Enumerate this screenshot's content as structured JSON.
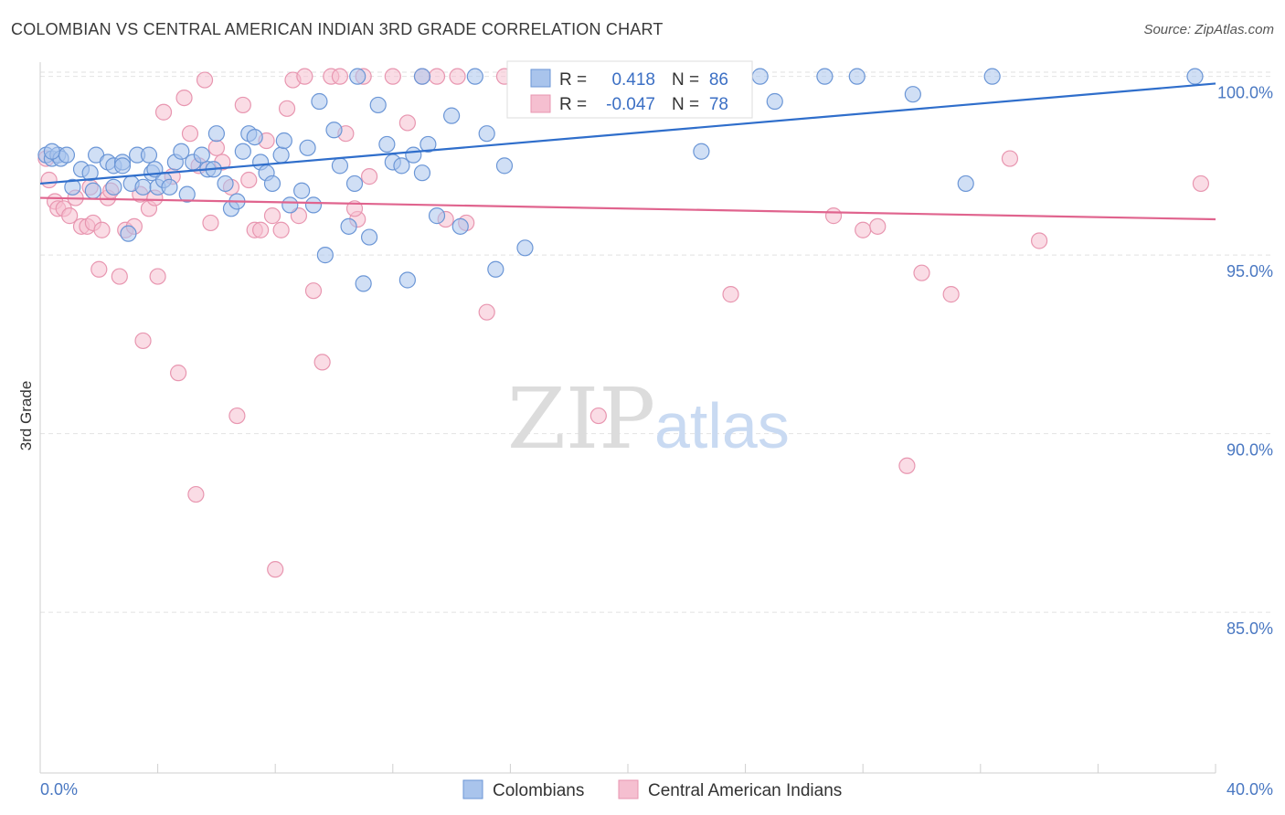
{
  "title": "COLOMBIAN VS CENTRAL AMERICAN INDIAN 3RD GRADE CORRELATION CHART",
  "source": "Source: ZipAtlas.com",
  "watermark": {
    "zip": "ZIP",
    "atlas": "atlas"
  },
  "colors": {
    "blue_fill": "#a9c4ec",
    "blue_stroke": "#6b96d6",
    "blue_line": "#2f6ecb",
    "pink_fill": "#f5bfd0",
    "pink_stroke": "#e896b0",
    "pink_line": "#e0648e",
    "grid": "#e2e2e2",
    "tick_text": "#4a78c2"
  },
  "legend": {
    "rows": [
      {
        "r_label": "R =",
        "r_value": "0.418",
        "n_label": "N =",
        "n_value": "86"
      },
      {
        "r_label": "R =",
        "r_value": "-0.047",
        "n_label": "N =",
        "n_value": "78"
      }
    ]
  },
  "chart_data": {
    "type": "scatter",
    "xlabel": "",
    "ylabel": "3rd Grade",
    "xlim": [
      0,
      40
    ],
    "ylim": [
      80.5,
      100.4
    ],
    "x_tick_labels": [
      "0.0%",
      "40.0%"
    ],
    "y_ticks": [
      85,
      90,
      95,
      100
    ],
    "y_tick_labels": [
      "85.0%",
      "90.0%",
      "95.0%",
      "100.0%"
    ],
    "grid": true,
    "legend_position": "top-center",
    "series": [
      {
        "name": "Colombians",
        "color": "#a9c4ec",
        "trend": {
          "x": [
            0,
            40
          ],
          "y": [
            97.0,
            99.8
          ]
        },
        "points": [
          [
            0.2,
            97.8
          ],
          [
            0.4,
            97.7
          ],
          [
            0.6,
            97.8
          ],
          [
            0.7,
            97.7
          ],
          [
            0.9,
            97.8
          ],
          [
            1.1,
            96.9
          ],
          [
            1.4,
            97.4
          ],
          [
            1.7,
            97.3
          ],
          [
            1.9,
            97.8
          ],
          [
            2.3,
            97.6
          ],
          [
            2.5,
            97.5
          ],
          [
            2.8,
            97.6
          ],
          [
            2.8,
            97.5
          ],
          [
            2.5,
            96.9
          ],
          [
            3.0,
            95.6
          ],
          [
            3.1,
            97.0
          ],
          [
            3.3,
            97.8
          ],
          [
            3.5,
            96.9
          ],
          [
            3.7,
            97.8
          ],
          [
            3.8,
            97.3
          ],
          [
            4.0,
            96.9
          ],
          [
            4.2,
            97.1
          ],
          [
            4.4,
            96.9
          ],
          [
            4.6,
            97.6
          ],
          [
            4.8,
            97.9
          ],
          [
            5.0,
            96.7
          ],
          [
            5.2,
            97.6
          ],
          [
            5.5,
            97.8
          ],
          [
            5.7,
            97.4
          ],
          [
            5.9,
            97.4
          ],
          [
            6.0,
            98.4
          ],
          [
            6.3,
            97.0
          ],
          [
            6.5,
            96.3
          ],
          [
            6.7,
            96.5
          ],
          [
            6.9,
            97.9
          ],
          [
            7.1,
            98.4
          ],
          [
            7.3,
            98.3
          ],
          [
            7.5,
            97.6
          ],
          [
            7.7,
            97.3
          ],
          [
            7.9,
            97.0
          ],
          [
            8.2,
            97.8
          ],
          [
            8.3,
            98.2
          ],
          [
            8.5,
            96.4
          ],
          [
            8.9,
            96.8
          ],
          [
            9.1,
            98.0
          ],
          [
            9.3,
            96.4
          ],
          [
            9.5,
            99.3
          ],
          [
            9.7,
            95.0
          ],
          [
            10.0,
            98.5
          ],
          [
            10.2,
            97.5
          ],
          [
            10.5,
            95.8
          ],
          [
            10.7,
            97.0
          ],
          [
            11.0,
            94.2
          ],
          [
            11.2,
            95.5
          ],
          [
            11.5,
            99.2
          ],
          [
            11.8,
            98.1
          ],
          [
            12.0,
            97.6
          ],
          [
            12.3,
            97.5
          ],
          [
            12.5,
            94.3
          ],
          [
            12.7,
            97.8
          ],
          [
            13.0,
            97.3
          ],
          [
            13.2,
            98.1
          ],
          [
            13.5,
            96.1
          ],
          [
            14.0,
            98.9
          ],
          [
            14.3,
            95.8
          ],
          [
            14.8,
            100.0
          ],
          [
            15.2,
            98.4
          ],
          [
            15.5,
            94.6
          ],
          [
            15.8,
            97.5
          ],
          [
            16.5,
            95.2
          ],
          [
            17.0,
            100.0
          ],
          [
            10.8,
            100.0
          ],
          [
            13.0,
            100.0
          ],
          [
            16.2,
            100.0
          ],
          [
            22.5,
            97.9
          ],
          [
            24.5,
            100.0
          ],
          [
            25.0,
            99.3
          ],
          [
            26.7,
            100.0
          ],
          [
            27.8,
            100.0
          ],
          [
            29.7,
            99.5
          ],
          [
            31.5,
            97.0
          ],
          [
            32.4,
            100.0
          ],
          [
            39.3,
            100.0
          ],
          [
            0.4,
            97.9
          ],
          [
            1.8,
            96.8
          ],
          [
            3.9,
            97.4
          ]
        ]
      },
      {
        "name": "Central American Indians",
        "color": "#f5bfd0",
        "trend": {
          "x": [
            0,
            40
          ],
          "y": [
            96.6,
            96.0
          ]
        },
        "points": [
          [
            0.2,
            97.7
          ],
          [
            0.3,
            97.1
          ],
          [
            0.5,
            96.5
          ],
          [
            0.6,
            96.3
          ],
          [
            0.8,
            96.3
          ],
          [
            1.0,
            96.1
          ],
          [
            1.2,
            96.6
          ],
          [
            1.4,
            95.8
          ],
          [
            1.6,
            95.8
          ],
          [
            1.8,
            95.9
          ],
          [
            1.7,
            96.9
          ],
          [
            2.0,
            94.6
          ],
          [
            2.3,
            96.6
          ],
          [
            2.4,
            96.8
          ],
          [
            2.7,
            94.4
          ],
          [
            2.9,
            95.7
          ],
          [
            3.2,
            95.8
          ],
          [
            3.4,
            96.7
          ],
          [
            3.5,
            92.6
          ],
          [
            3.7,
            96.3
          ],
          [
            3.9,
            96.6
          ],
          [
            4.0,
            94.4
          ],
          [
            4.2,
            99.0
          ],
          [
            4.5,
            97.2
          ],
          [
            4.7,
            91.7
          ],
          [
            4.9,
            99.4
          ],
          [
            5.1,
            98.4
          ],
          [
            5.4,
            97.5
          ],
          [
            5.6,
            99.9
          ],
          [
            5.8,
            95.9
          ],
          [
            6.0,
            98.0
          ],
          [
            6.2,
            97.6
          ],
          [
            6.5,
            96.9
          ],
          [
            6.7,
            90.5
          ],
          [
            6.9,
            99.2
          ],
          [
            7.1,
            97.1
          ],
          [
            7.3,
            95.7
          ],
          [
            7.5,
            95.7
          ],
          [
            7.7,
            98.2
          ],
          [
            7.9,
            96.1
          ],
          [
            8.0,
            86.2
          ],
          [
            8.2,
            95.7
          ],
          [
            8.4,
            99.1
          ],
          [
            8.6,
            99.9
          ],
          [
            8.8,
            96.1
          ],
          [
            9.0,
            100.0
          ],
          [
            9.3,
            94.0
          ],
          [
            9.6,
            92.0
          ],
          [
            9.9,
            100.0
          ],
          [
            10.2,
            100.0
          ],
          [
            10.4,
            98.4
          ],
          [
            10.8,
            96.0
          ],
          [
            11.0,
            100.0
          ],
          [
            11.2,
            97.2
          ],
          [
            12.0,
            100.0
          ],
          [
            12.5,
            98.7
          ],
          [
            13.0,
            100.0
          ],
          [
            13.5,
            100.0
          ],
          [
            13.8,
            96.0
          ],
          [
            14.2,
            100.0
          ],
          [
            14.5,
            95.9
          ],
          [
            15.2,
            93.4
          ],
          [
            15.8,
            100.0
          ],
          [
            18.0,
            100.0
          ],
          [
            19.0,
            90.5
          ],
          [
            23.5,
            93.9
          ],
          [
            27.0,
            96.1
          ],
          [
            28.0,
            95.7
          ],
          [
            28.5,
            95.8
          ],
          [
            29.5,
            89.1
          ],
          [
            30.0,
            94.5
          ],
          [
            31.0,
            93.9
          ],
          [
            33.0,
            97.7
          ],
          [
            34.0,
            95.4
          ],
          [
            39.5,
            97.0
          ],
          [
            5.3,
            88.3
          ],
          [
            10.7,
            96.3
          ],
          [
            2.1,
            95.7
          ]
        ]
      }
    ]
  },
  "bottom_legend": [
    {
      "label": "Colombians"
    },
    {
      "label": "Central American Indians"
    }
  ]
}
